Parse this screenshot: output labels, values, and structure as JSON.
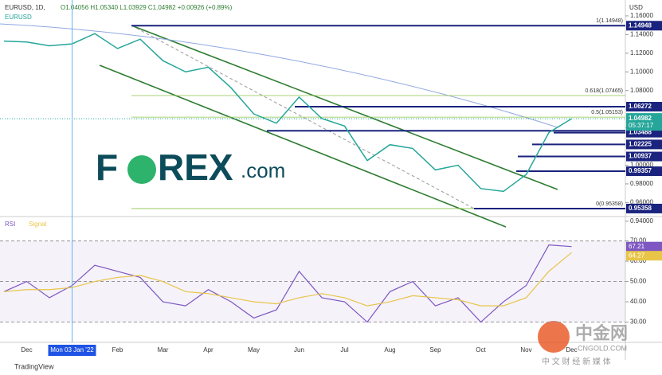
{
  "header": {
    "symbol": "EURUSD, 1D,",
    "ohlc": "O1.04056 H1.05340 L1.03929 C1.04982 +0.00926 (+0.89%)",
    "currency": "USD"
  },
  "logo": {
    "brand": "F",
    "brand2": "REX",
    "suffix": ".com"
  },
  "footer": {
    "tradingview": "TradingView"
  },
  "watermark": {
    "cn": "中金网",
    "site": "CNGOLD.COM",
    "sub": "中 文 财 经 新 媒 体"
  },
  "chart_data": {
    "type": "line",
    "title": "EURUSD",
    "categories": [
      null,
      "Dec",
      null,
      "Mon 03 Jan '22",
      null,
      "Feb",
      null,
      "Mar",
      null,
      "Apr",
      null,
      "May",
      null,
      "Jun",
      null,
      "Jul",
      null,
      "Aug",
      null,
      "Sep",
      null,
      "Oct",
      null,
      "Nov",
      null,
      "Dec"
    ],
    "series": [
      {
        "name": "EURUSD",
        "color": "#26a69a",
        "values": [
          1.133,
          1.132,
          1.128,
          1.13,
          1.141,
          1.125,
          1.135,
          1.112,
          1.1,
          1.105,
          1.083,
          1.055,
          1.045,
          1.073,
          1.05,
          1.042,
          1.005,
          1.022,
          1.018,
          0.995,
          1.0,
          0.975,
          0.972,
          0.99,
          1.035,
          1.04982
        ]
      }
    ],
    "ylim": [
      0.945,
      1.177
    ],
    "yticks": [
      {
        "value": 0.94,
        "label": "0.94000"
      },
      {
        "value": 0.96,
        "label": "0.96000"
      },
      {
        "value": 0.98,
        "label": "0.98000"
      },
      {
        "value": 1.0,
        "label": "1.00000"
      },
      {
        "value": 1.02,
        "label": "1.02000"
      },
      {
        "value": 1.04,
        "label": "1.04000"
      },
      {
        "value": 1.06,
        "label": "1.06000"
      },
      {
        "value": 1.08,
        "label": "1.08000"
      },
      {
        "value": 1.1,
        "label": "1.10000"
      },
      {
        "value": 1.12,
        "label": "1.12000"
      },
      {
        "value": 1.14,
        "label": "1.14000"
      },
      {
        "value": 1.16,
        "label": "1.16000"
      }
    ],
    "levels": [
      1.14948,
      1.06272,
      1.03689,
      1.03488,
      1.02225,
      1.00937,
      0.99357,
      0.95358
    ],
    "current": {
      "value": 1.04982,
      "timer": "05:37:17",
      "color": "#26a69a"
    },
    "fib": [
      {
        "value": 1.14948,
        "label": "1(1.14948)"
      },
      {
        "value": 1.07465,
        "label": "0.618(1.07465)"
      },
      {
        "value": 1.05153,
        "label": "0.5(1.05153)"
      },
      {
        "value": 0.95358,
        "label": "0(0.95358)"
      }
    ],
    "rsi": {
      "ylim": [
        20,
        82
      ],
      "yticks": [
        {
          "value": 30,
          "label": "30.00"
        },
        {
          "value": 40,
          "label": "40.00"
        },
        {
          "value": 50,
          "label": "50.00"
        },
        {
          "value": 60,
          "label": "60.00"
        },
        {
          "value": 70,
          "label": "70.00"
        }
      ],
      "series": [
        {
          "name": "RSI",
          "color": "#7e57c2",
          "values": [
            45,
            50,
            42,
            48,
            58,
            55,
            52,
            40,
            38,
            46,
            40,
            32,
            36,
            55,
            42,
            40,
            30,
            45,
            50,
            38,
            42,
            30,
            40,
            48,
            68,
            67.21
          ]
        },
        {
          "name": "Signal",
          "color": "#e8c547",
          "values": [
            45,
            46,
            46,
            47,
            50,
            52,
            53,
            50,
            45,
            44,
            42,
            40,
            39,
            42,
            44,
            42,
            38,
            40,
            43,
            42,
            41,
            38,
            38,
            42,
            55,
            64.27
          ]
        }
      ]
    }
  }
}
